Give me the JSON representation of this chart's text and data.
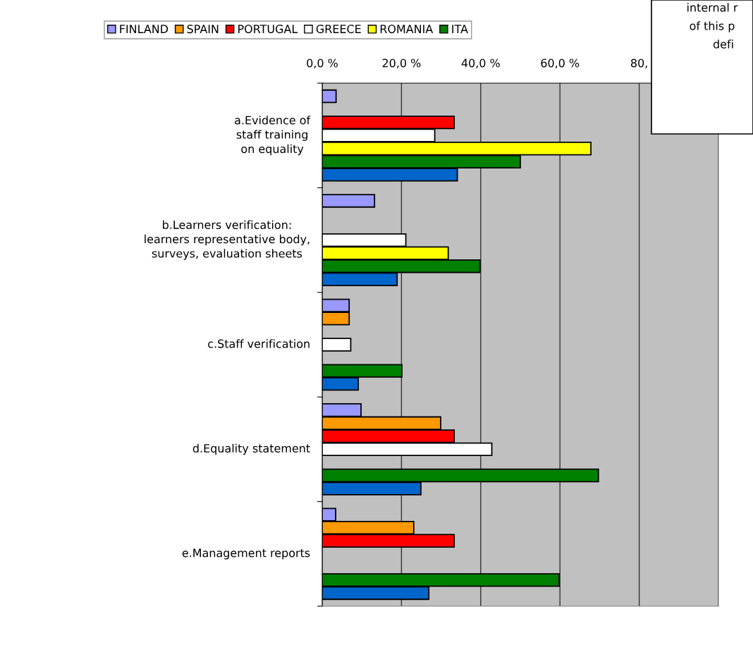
{
  "chart_data": {
    "type": "bar",
    "orientation": "horizontal",
    "categories": [
      "a.Evidence of\nstaff training\non equality",
      "b.Learners verification:\nlearners representative body,\nsurveys, evaluation sheets",
      "c.Staff verification",
      "d.Equality statement",
      "e.Management reports"
    ],
    "series": [
      {
        "name": "FINLAND",
        "color": "#9999ff",
        "values": [
          3.5,
          13.2,
          6.8,
          9.8,
          3.4
        ]
      },
      {
        "name": "SPAIN",
        "color": "#ff9900",
        "values": [
          null,
          null,
          6.8,
          29.9,
          23.1
        ]
      },
      {
        "name": "PORTUGAL",
        "color": "#ff0000",
        "values": [
          33.3,
          null,
          null,
          33.3,
          33.3
        ]
      },
      {
        "name": "GREECE",
        "color": "#ffffff",
        "values": [
          28.4,
          21.1,
          7.2,
          42.8,
          null
        ]
      },
      {
        "name": "ROMANIA",
        "color": "#ffff00",
        "values": [
          67.8,
          31.8,
          null,
          null,
          null
        ]
      },
      {
        "name": "ITA",
        "color": "#008000",
        "values": [
          50.0,
          39.8,
          20.1,
          69.7,
          59.8
        ]
      },
      {
        "color": "#0066cc",
        "values": [
          34.1,
          18.9,
          9.1,
          24.9,
          26.9
        ]
      }
    ],
    "xlim": [
      0,
      100
    ],
    "xticks": [
      {
        "value": 0,
        "label": "0,0 %"
      },
      {
        "value": 20,
        "label": "20,0 %"
      },
      {
        "value": 40,
        "label": "40,0 %"
      },
      {
        "value": 60,
        "label": "60,0 %"
      },
      {
        "value": 80,
        "label": "80,"
      },
      {
        "value": 100,
        "label": null
      }
    ],
    "grid": "x",
    "legend": "top",
    "annotations": [
      "internal r",
      "of this p",
      "defi"
    ]
  }
}
